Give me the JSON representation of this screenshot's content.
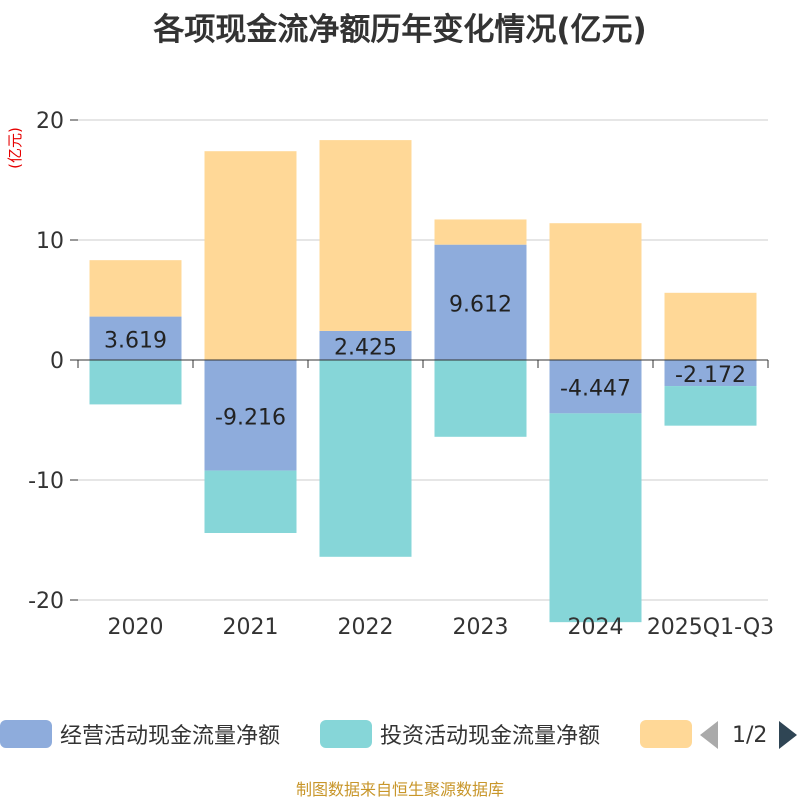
{
  "title": "各项现金流净额历年变化情况(亿元)",
  "footer": "制图数据来自恒生聚源数据库",
  "legend": {
    "items": [
      {
        "label": "经营活动现金流量净额",
        "color": "#8eacdc"
      },
      {
        "label": "投资活动现金流量净额",
        "color": "#86d6d8"
      },
      {
        "label": "",
        "color": "#ffd897"
      }
    ],
    "page": "1/2"
  },
  "chart_data": {
    "type": "bar",
    "stacked": true,
    "ylabel": "(亿元)",
    "ylim": [
      -20,
      20
    ],
    "yticks": [
      20,
      10,
      0,
      -10,
      -20
    ],
    "grid": true,
    "categories": [
      "2020",
      "2021",
      "2022",
      "2023",
      "2024",
      "2025Q1-Q3"
    ],
    "series": [
      {
        "name": "经营活动现金流量净额",
        "color": "#8eacdc",
        "values": [
          3.619,
          -9.216,
          2.425,
          9.612,
          -4.447,
          -2.172
        ],
        "labels": [
          "3.619",
          "-9.216",
          "2.425",
          "9.612",
          "-4.447",
          "-2.172"
        ]
      },
      {
        "name": "投资活动现金流量净额",
        "color": "#86d6d8",
        "values": [
          -3.7,
          -5.2,
          -16.4,
          -6.4,
          -17.4,
          -3.3
        ]
      },
      {
        "name": "",
        "color": "#ffd897",
        "values": [
          4.7,
          17.4,
          15.9,
          2.1,
          11.4,
          5.6
        ]
      }
    ]
  }
}
